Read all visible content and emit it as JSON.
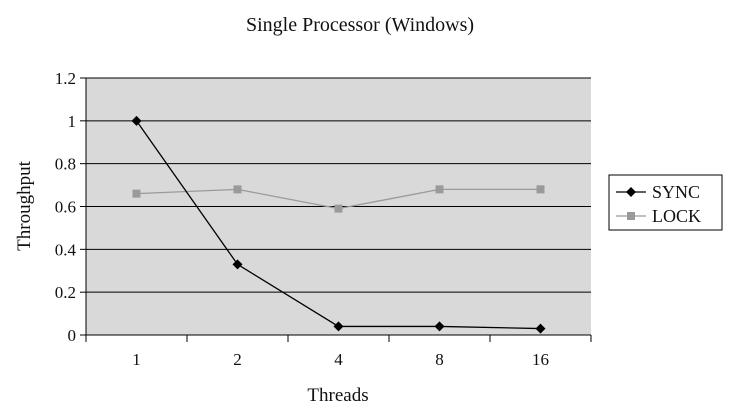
{
  "chart_data": {
    "type": "line",
    "title": "Single Processor (Windows)",
    "xlabel": "Threads",
    "ylabel": "Throughput",
    "categories": [
      "1",
      "2",
      "4",
      "8",
      "16"
    ],
    "ylim": [
      0,
      1.2
    ],
    "yticks": [
      "0",
      "0.2",
      "0.4",
      "0.6",
      "0.8",
      "1",
      "1.2"
    ],
    "grid": true,
    "legend_position": "right",
    "series": [
      {
        "name": "SYNC",
        "values": [
          1.0,
          0.33,
          0.04,
          0.04,
          0.03
        ],
        "color": "#000000",
        "marker": "diamond"
      },
      {
        "name": "LOCK",
        "values": [
          0.66,
          0.68,
          0.59,
          0.68,
          0.68
        ],
        "color": "#9a9a9a",
        "marker": "square"
      }
    ],
    "plot_background": "#d9d9d9"
  }
}
